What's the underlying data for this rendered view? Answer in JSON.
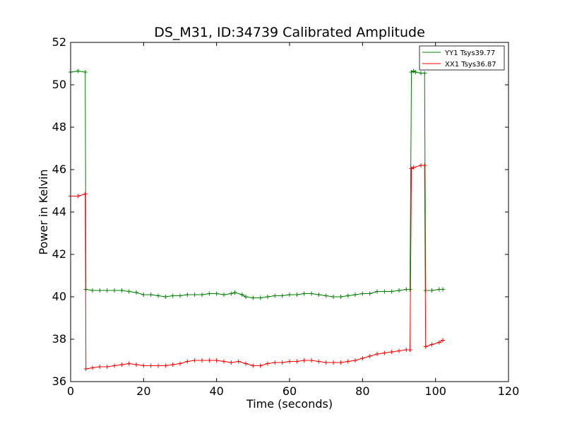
{
  "chart_data": {
    "type": "line",
    "title": "DS_M31, ID:34739 Calibrated Amplitude",
    "xlabel": "Time (seconds)",
    "ylabel": "Power in Kelvin",
    "xlim": [
      0,
      120
    ],
    "ylim": [
      36,
      52
    ],
    "xticks": [
      0,
      20,
      40,
      60,
      80,
      100,
      120
    ],
    "yticks": [
      36,
      38,
      40,
      42,
      44,
      46,
      48,
      50,
      52
    ],
    "grid": false,
    "legend_position": "top-right",
    "series": [
      {
        "name": "YY1 Tsys39.77",
        "color": "#008000",
        "points": [
          [
            0,
            50.6
          ],
          [
            2,
            50.65
          ],
          [
            4,
            50.6
          ],
          [
            4.2,
            40.35
          ],
          [
            6,
            40.3
          ],
          [
            8,
            40.3
          ],
          [
            10,
            40.3
          ],
          [
            12,
            40.3
          ],
          [
            14,
            40.3
          ],
          [
            16,
            40.25
          ],
          [
            18,
            40.2
          ],
          [
            20,
            40.1
          ],
          [
            22,
            40.1
          ],
          [
            24,
            40.05
          ],
          [
            26,
            40.0
          ],
          [
            28,
            40.05
          ],
          [
            30,
            40.05
          ],
          [
            32,
            40.1
          ],
          [
            34,
            40.1
          ],
          [
            36,
            40.1
          ],
          [
            38,
            40.15
          ],
          [
            40,
            40.15
          ],
          [
            42,
            40.1
          ],
          [
            44,
            40.15
          ],
          [
            45,
            40.2
          ],
          [
            47,
            40.1
          ],
          [
            48,
            40.0
          ],
          [
            50,
            39.95
          ],
          [
            52,
            39.95
          ],
          [
            54,
            40.0
          ],
          [
            56,
            40.05
          ],
          [
            58,
            40.05
          ],
          [
            60,
            40.1
          ],
          [
            62,
            40.1
          ],
          [
            64,
            40.15
          ],
          [
            66,
            40.15
          ],
          [
            68,
            40.1
          ],
          [
            70,
            40.05
          ],
          [
            72,
            40.0
          ],
          [
            74,
            40.0
          ],
          [
            76,
            40.05
          ],
          [
            78,
            40.1
          ],
          [
            80,
            40.15
          ],
          [
            82,
            40.15
          ],
          [
            84,
            40.25
          ],
          [
            86,
            40.25
          ],
          [
            88,
            40.25
          ],
          [
            90,
            40.3
          ],
          [
            92,
            40.35
          ],
          [
            93,
            40.35
          ],
          [
            93.4,
            50.6
          ],
          [
            94,
            50.65
          ],
          [
            94.5,
            50.6
          ],
          [
            96,
            50.55
          ],
          [
            97,
            50.55
          ],
          [
            97.3,
            40.3
          ],
          [
            99,
            40.3
          ],
          [
            101,
            40.35
          ],
          [
            102,
            40.35
          ]
        ]
      },
      {
        "name": "XX1 Tsys36.87",
        "color": "#ff0000",
        "points": [
          [
            0,
            44.75
          ],
          [
            2,
            44.75
          ],
          [
            4,
            44.85
          ],
          [
            4.2,
            36.6
          ],
          [
            6,
            36.65
          ],
          [
            8,
            36.7
          ],
          [
            10,
            36.7
          ],
          [
            12,
            36.75
          ],
          [
            14,
            36.8
          ],
          [
            16,
            36.85
          ],
          [
            18,
            36.8
          ],
          [
            20,
            36.75
          ],
          [
            22,
            36.75
          ],
          [
            24,
            36.75
          ],
          [
            26,
            36.75
          ],
          [
            28,
            36.8
          ],
          [
            30,
            36.85
          ],
          [
            32,
            36.95
          ],
          [
            34,
            37.0
          ],
          [
            36,
            37.0
          ],
          [
            38,
            37.0
          ],
          [
            40,
            37.0
          ],
          [
            42,
            36.95
          ],
          [
            44,
            36.9
          ],
          [
            46,
            36.95
          ],
          [
            48,
            36.85
          ],
          [
            50,
            36.75
          ],
          [
            52,
            36.75
          ],
          [
            54,
            36.85
          ],
          [
            56,
            36.9
          ],
          [
            58,
            36.9
          ],
          [
            60,
            36.95
          ],
          [
            62,
            36.95
          ],
          [
            64,
            37.0
          ],
          [
            66,
            37.0
          ],
          [
            68,
            36.95
          ],
          [
            70,
            36.9
          ],
          [
            72,
            36.9
          ],
          [
            74,
            36.9
          ],
          [
            76,
            36.95
          ],
          [
            78,
            37.0
          ],
          [
            80,
            37.1
          ],
          [
            82,
            37.2
          ],
          [
            84,
            37.3
          ],
          [
            86,
            37.35
          ],
          [
            88,
            37.4
          ],
          [
            90,
            37.45
          ],
          [
            92,
            37.5
          ],
          [
            93,
            37.5
          ],
          [
            93.4,
            46.05
          ],
          [
            94,
            46.1
          ],
          [
            96,
            46.2
          ],
          [
            97,
            46.2
          ],
          [
            97.3,
            37.65
          ],
          [
            99,
            37.75
          ],
          [
            101,
            37.85
          ],
          [
            102,
            37.95
          ]
        ]
      }
    ]
  }
}
